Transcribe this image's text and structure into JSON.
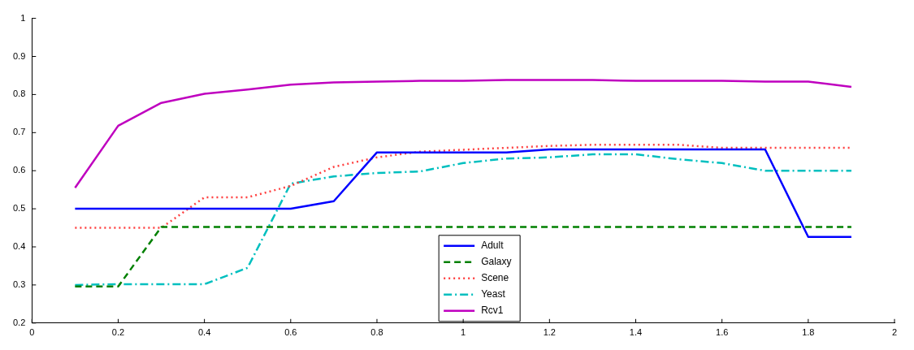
{
  "chart_data": {
    "type": "line",
    "x": [
      0.1,
      0.2,
      0.3,
      0.4,
      0.5,
      0.6,
      0.7,
      0.8,
      0.9,
      1.0,
      1.1,
      1.2,
      1.3,
      1.4,
      1.5,
      1.6,
      1.7,
      1.8,
      1.9
    ],
    "series": [
      {
        "name": "Adult",
        "color": "#0000ff",
        "line_style": "solid",
        "values": [
          0.5,
          0.5,
          0.5,
          0.5,
          0.5,
          0.5,
          0.52,
          0.648,
          0.648,
          0.648,
          0.648,
          0.656,
          0.656,
          0.656,
          0.656,
          0.656,
          0.656,
          0.426,
          0.426
        ]
      },
      {
        "name": "Galaxy",
        "color": "#008000",
        "line_style": "dashed",
        "values": [
          0.296,
          0.296,
          0.452,
          0.452,
          0.452,
          0.452,
          0.452,
          0.452,
          0.452,
          0.452,
          0.452,
          0.452,
          0.452,
          0.452,
          0.452,
          0.452,
          0.452,
          0.452,
          0.452
        ]
      },
      {
        "name": "Scene",
        "color": "#ff4040",
        "line_style": "dotted",
        "values": [
          0.45,
          0.45,
          0.45,
          0.53,
          0.53,
          0.56,
          0.61,
          0.635,
          0.65,
          0.655,
          0.66,
          0.665,
          0.668,
          0.668,
          0.668,
          0.66,
          0.66,
          0.66,
          0.66
        ]
      },
      {
        "name": "Yeast",
        "color": "#00bfbf",
        "line_style": "dashdot",
        "values": [
          0.3,
          0.302,
          0.302,
          0.302,
          0.345,
          0.566,
          0.585,
          0.594,
          0.598,
          0.62,
          0.632,
          0.635,
          0.643,
          0.643,
          0.63,
          0.62,
          0.6,
          0.6,
          0.6
        ]
      },
      {
        "name": "Rcv1",
        "color": "#bf00bf",
        "line_style": "solid",
        "values": [
          0.555,
          0.718,
          0.778,
          0.802,
          0.813,
          0.826,
          0.832,
          0.834,
          0.836,
          0.836,
          0.838,
          0.838,
          0.838,
          0.836,
          0.836,
          0.836,
          0.834,
          0.834,
          0.82
        ]
      }
    ],
    "xlim": [
      0,
      2
    ],
    "xticks": [
      0,
      0.2,
      0.4,
      0.6,
      0.8,
      1,
      1.2,
      1.4,
      1.6,
      1.8,
      2
    ],
    "ylim": [
      0.2,
      1
    ],
    "yticks": [
      0.2,
      0.3,
      0.4,
      0.5,
      0.6,
      0.7,
      0.8,
      0.9,
      1
    ],
    "grid": false,
    "legend": "bottom",
    "marker": "none"
  }
}
